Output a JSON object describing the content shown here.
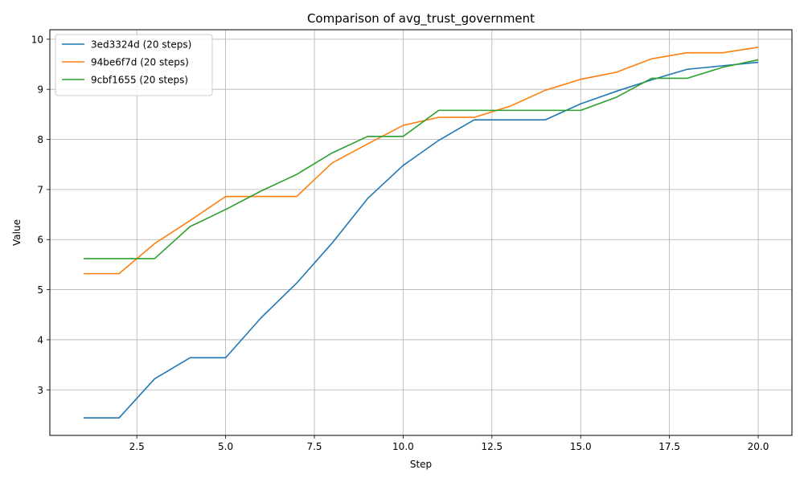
{
  "chart_data": {
    "type": "line",
    "title": "Comparison of avg_trust_government",
    "xlabel": "Step",
    "ylabel": "Value",
    "xlim": [
      0.05,
      20.95
    ],
    "ylim": [
      2.09,
      10.19
    ],
    "xticks": [
      2.5,
      5.0,
      7.5,
      10.0,
      12.5,
      15.0,
      17.5,
      20.0
    ],
    "xtick_labels": [
      "2.5",
      "5.0",
      "7.5",
      "10.0",
      "12.5",
      "15.0",
      "17.5",
      "20.0"
    ],
    "yticks": [
      3,
      4,
      5,
      6,
      7,
      8,
      9,
      10
    ],
    "ytick_labels": [
      "3",
      "4",
      "5",
      "6",
      "7",
      "8",
      "9",
      "10"
    ],
    "grid": true,
    "legend_position": "top-left",
    "x": [
      1,
      2,
      3,
      4,
      5,
      6,
      7,
      8,
      9,
      10,
      11,
      12,
      13,
      14,
      15,
      16,
      17,
      18,
      19,
      20
    ],
    "series": [
      {
        "name": "3ed3324d (20 steps)",
        "color": "#1f77b4",
        "values": [
          2.44,
          2.44,
          3.22,
          3.64,
          3.64,
          4.44,
          5.13,
          5.93,
          6.82,
          7.48,
          7.98,
          8.39,
          8.39,
          8.39,
          8.71,
          8.96,
          9.19,
          9.4,
          9.47,
          9.54
        ]
      },
      {
        "name": "94be6f7d (20 steps)",
        "color": "#ff7f0e",
        "values": [
          5.32,
          5.32,
          5.92,
          6.38,
          6.86,
          6.86,
          6.86,
          7.53,
          7.91,
          8.28,
          8.44,
          8.44,
          8.66,
          8.98,
          9.2,
          9.34,
          9.61,
          9.73,
          9.73,
          9.84
        ]
      },
      {
        "name": "9cbf1655 (20 steps)",
        "color": "#2ca02c",
        "values": [
          5.62,
          5.62,
          5.62,
          6.26,
          6.6,
          6.97,
          7.3,
          7.73,
          8.06,
          8.06,
          8.58,
          8.58,
          8.58,
          8.58,
          8.58,
          8.84,
          9.22,
          9.22,
          9.44,
          9.59
        ]
      }
    ]
  }
}
